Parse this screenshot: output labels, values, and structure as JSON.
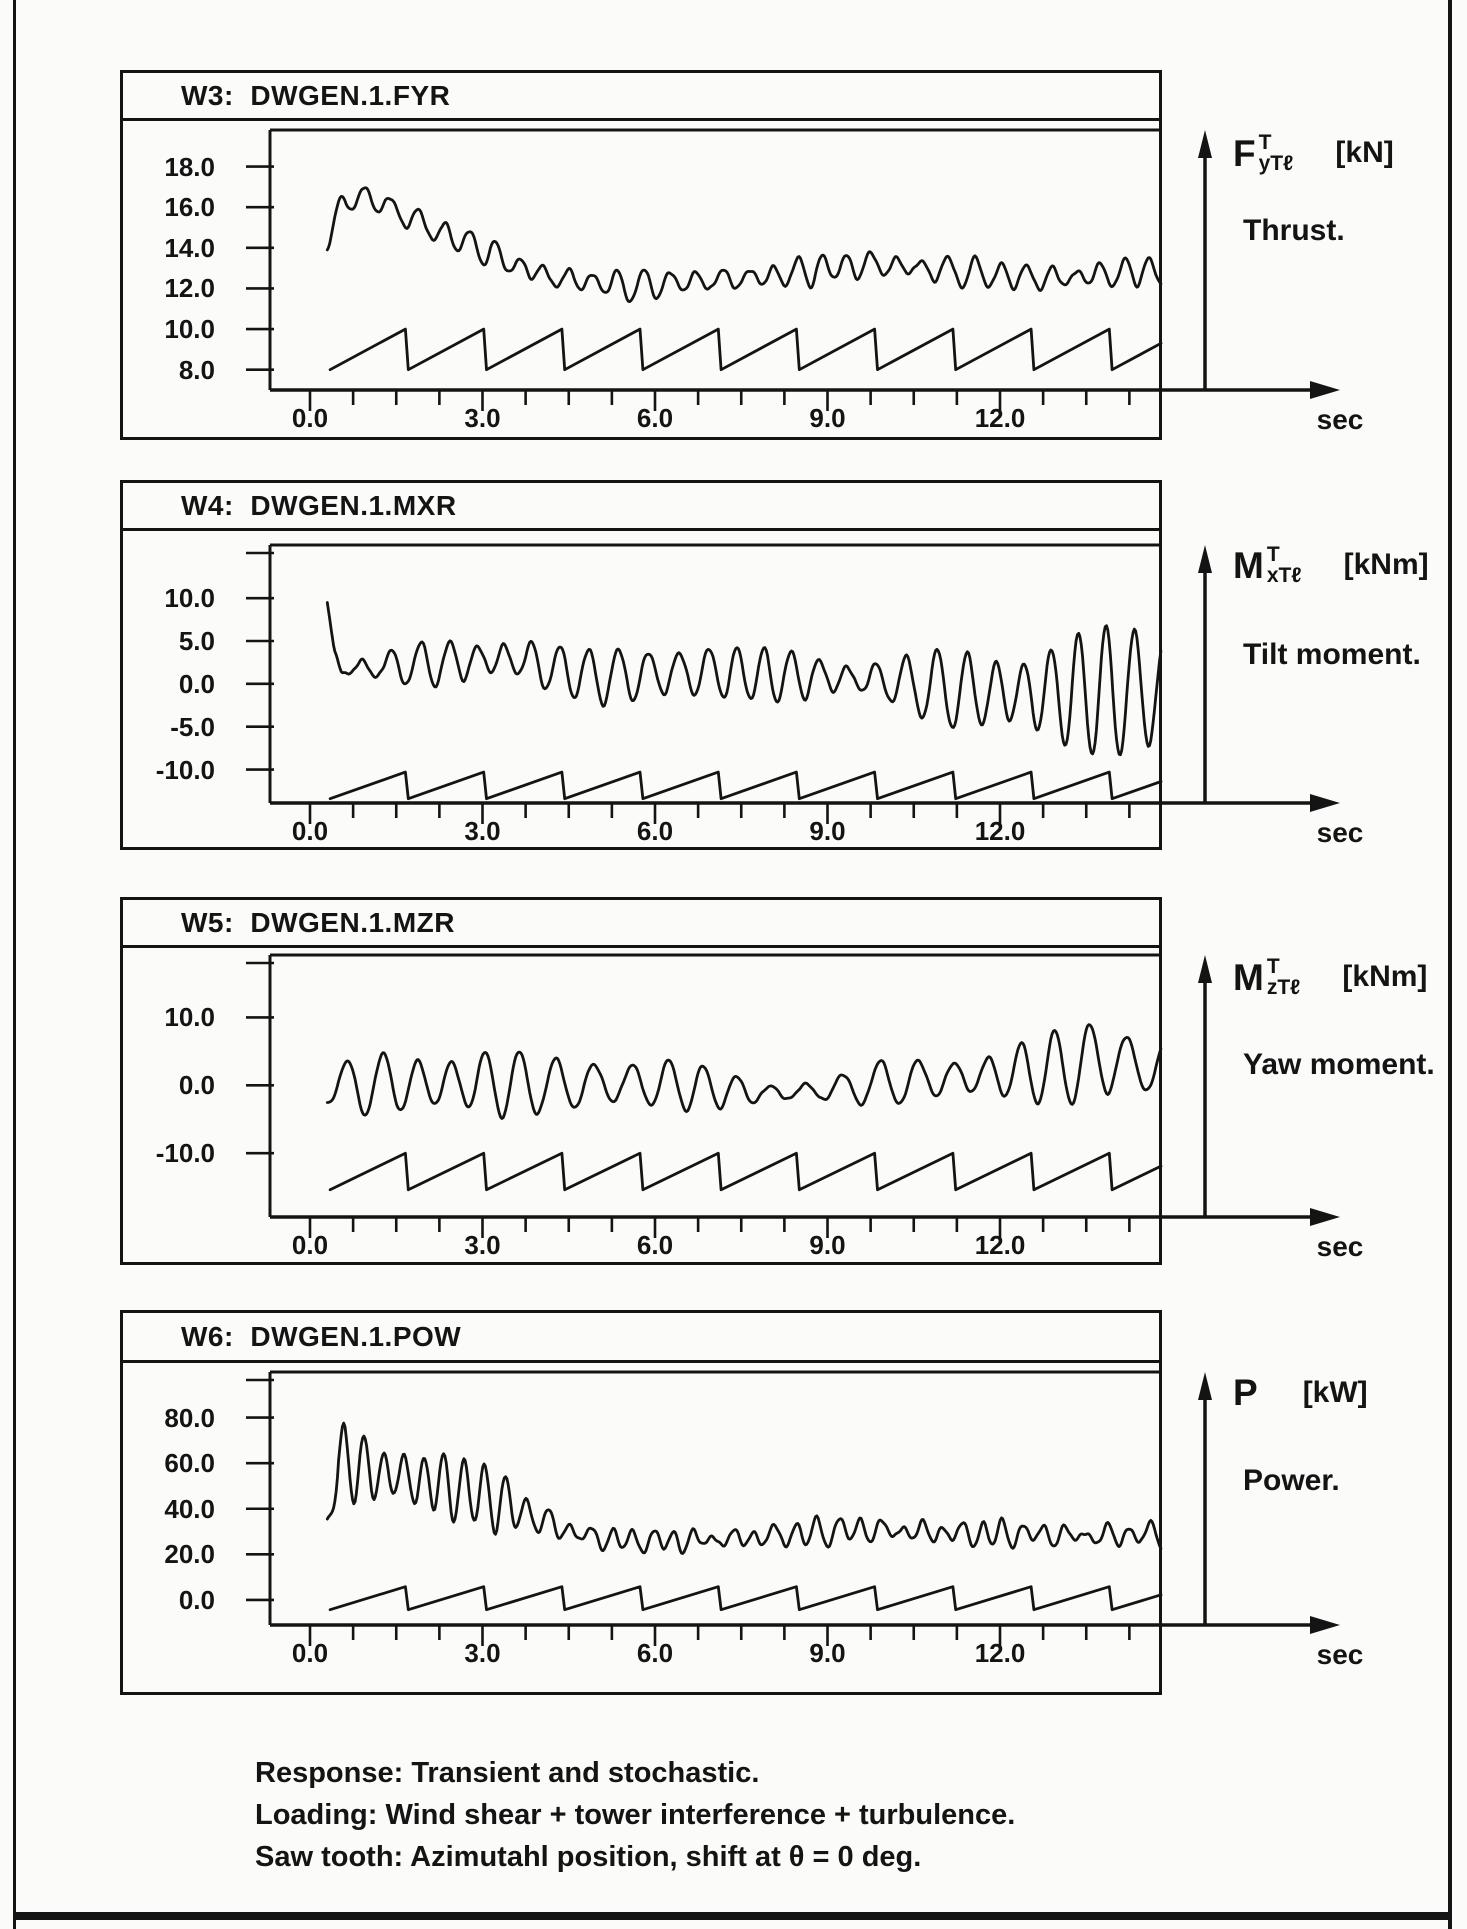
{
  "page": {
    "background": "#fbfbf9",
    "ink": "#141414",
    "caption_lines": [
      "Response: Transient and stochastic.",
      "Loading: Wind shear + tower interference + turbulence.",
      "Saw tooth: Azimutahl position, shift at θ = 0 deg."
    ]
  },
  "chart_data": [
    {
      "type": "line",
      "window_title": "W3:  DWGEN.1.FYR",
      "symbol": {
        "base": "F",
        "sup": "T",
        "sub": "yTℓ"
      },
      "unit": "[kN]",
      "quantity": "Thrust.",
      "xlabel": "sec",
      "xlim": [
        0,
        14.8
      ],
      "x_tick_values": [
        0,
        3,
        6,
        9,
        12
      ],
      "x_tick_labels": [
        "0.0",
        "3.0",
        "6.0",
        "9.0",
        "12.0"
      ],
      "x_minor_step": 0.75,
      "ylim": [
        7.0,
        19.8
      ],
      "y_ticks": [
        18,
        16,
        14,
        12,
        10,
        8
      ],
      "y_tick_labels": [
        "18.0",
        "16.0",
        "14.0",
        "12.0",
        "10.0",
        "8.0"
      ],
      "signal": {
        "t_start": 0.3,
        "period": 0.44,
        "phase": -2.0,
        "noise": 0.2,
        "seed": 1,
        "mean": [
          [
            0.3,
            14.6
          ],
          [
            0.6,
            16.2
          ],
          [
            0.9,
            16.6
          ],
          [
            1.3,
            16.1
          ],
          [
            1.8,
            15.4
          ],
          [
            2.3,
            14.7
          ],
          [
            2.8,
            14.2
          ],
          [
            3.3,
            13.5
          ],
          [
            3.8,
            12.9
          ],
          [
            4.3,
            12.5
          ],
          [
            5.0,
            12.3
          ],
          [
            5.6,
            12.1
          ],
          [
            6.3,
            12.3
          ],
          [
            7.0,
            12.4
          ],
          [
            8.0,
            12.6
          ],
          [
            9.0,
            13.0
          ],
          [
            9.8,
            13.2
          ],
          [
            10.6,
            13.0
          ],
          [
            11.4,
            12.8
          ],
          [
            12.2,
            12.6
          ],
          [
            13.0,
            12.5
          ],
          [
            13.8,
            12.7
          ],
          [
            14.8,
            12.9
          ]
        ],
        "amp": [
          [
            0.3,
            0.5
          ],
          [
            0.8,
            0.75
          ],
          [
            1.5,
            0.6
          ],
          [
            3.0,
            0.5
          ],
          [
            5.0,
            0.55
          ],
          [
            8.0,
            0.5
          ],
          [
            10.0,
            0.6
          ],
          [
            12.0,
            0.55
          ],
          [
            14.8,
            0.6
          ]
        ]
      },
      "sawtooth": {
        "t_start": 0.35,
        "period": 1.31,
        "min": 8.0,
        "max": 10.0
      }
    },
    {
      "type": "line",
      "window_title": "W4:  DWGEN.1.MXR",
      "symbol": {
        "base": "M",
        "sup": "T",
        "sub": "xTℓ"
      },
      "unit": "[kNm]",
      "quantity": "Tilt moment.",
      "xlabel": "sec",
      "xlim": [
        0,
        14.8
      ],
      "x_tick_values": [
        0,
        3,
        6,
        9,
        12
      ],
      "x_tick_labels": [
        "0.0",
        "3.0",
        "6.0",
        "9.0",
        "12.0"
      ],
      "x_minor_step": 0.75,
      "ylim": [
        -13.9,
        16.2
      ],
      "y_ticks": [
        10,
        5,
        0,
        -5,
        -10
      ],
      "y_tick_labels": [
        "10.0",
        "5.0",
        "0.0",
        "-5.0",
        "-10.0"
      ],
      "signal": {
        "t_start": 0.3,
        "period": 0.5,
        "phase": 0.5,
        "noise": 0.5,
        "seed": 2,
        "mean": [
          [
            0.3,
            9.5
          ],
          [
            0.42,
            3.5
          ],
          [
            0.55,
            1.6
          ],
          [
            0.8,
            1.8
          ],
          [
            1.2,
            2.0
          ],
          [
            2.0,
            2.3
          ],
          [
            3.0,
            2.8
          ],
          [
            3.6,
            3.0
          ],
          [
            4.2,
            1.8
          ],
          [
            5.0,
            0.8
          ],
          [
            6.0,
            1.2
          ],
          [
            7.0,
            1.4
          ],
          [
            8.0,
            1.0
          ],
          [
            9.0,
            0.8
          ],
          [
            10.0,
            0.4
          ],
          [
            10.8,
            -0.4
          ],
          [
            11.5,
            -0.9
          ],
          [
            12.5,
            -1.1
          ],
          [
            13.5,
            -1.0
          ],
          [
            14.8,
            -0.7
          ]
        ],
        "amp": [
          [
            0.3,
            0.2
          ],
          [
            0.6,
            1.0
          ],
          [
            1.5,
            1.7
          ],
          [
            2.5,
            2.1
          ],
          [
            3.5,
            2.6
          ],
          [
            4.5,
            2.2
          ],
          [
            5.5,
            3.2
          ],
          [
            6.5,
            3.0
          ],
          [
            7.5,
            2.6
          ],
          [
            8.5,
            2.4
          ],
          [
            9.5,
            2.2
          ],
          [
            10.5,
            2.6
          ],
          [
            11.3,
            3.8
          ],
          [
            12.0,
            4.8
          ],
          [
            13.0,
            5.6
          ],
          [
            14.0,
            6.2
          ],
          [
            14.8,
            6.6
          ]
        ]
      },
      "sawtooth": {
        "t_start": 0.35,
        "period": 1.31,
        "min": -13.4,
        "max": -10.3
      }
    },
    {
      "type": "line",
      "window_title": "W5:  DWGEN.1.MZR",
      "symbol": {
        "base": "M",
        "sup": "T",
        "sub": "zTℓ"
      },
      "unit": "[kNm]",
      "quantity": "Yaw moment.",
      "xlabel": "sec",
      "xlim": [
        0,
        14.8
      ],
      "x_tick_values": [
        0,
        3,
        6,
        9,
        12
      ],
      "x_tick_labels": [
        "0.0",
        "3.0",
        "6.0",
        "9.0",
        "12.0"
      ],
      "x_minor_step": 0.75,
      "ylim": [
        -19.4,
        19.2
      ],
      "y_ticks": [
        10,
        0,
        -10
      ],
      "y_tick_labels": [
        "10.0",
        "0.0",
        "-10.0"
      ],
      "signal": {
        "t_start": 0.3,
        "period": 0.62,
        "phase": -1.47,
        "noise": 0.35,
        "seed": 3,
        "mean": [
          [
            0.3,
            -1.0
          ],
          [
            0.6,
            0.0
          ],
          [
            1.0,
            0.3
          ],
          [
            2.0,
            0.2
          ],
          [
            3.0,
            0.5
          ],
          [
            4.0,
            0.0
          ],
          [
            5.0,
            0.2
          ],
          [
            6.0,
            0.3
          ],
          [
            7.0,
            -0.5
          ],
          [
            8.0,
            -1.2
          ],
          [
            9.0,
            -0.7
          ],
          [
            10.0,
            0.4
          ],
          [
            11.0,
            1.0
          ],
          [
            12.0,
            1.6
          ],
          [
            13.0,
            2.6
          ],
          [
            13.8,
            3.8
          ],
          [
            14.4,
            3.0
          ],
          [
            14.8,
            2.5
          ]
        ],
        "amp": [
          [
            0.3,
            1.5
          ],
          [
            0.8,
            3.6
          ],
          [
            1.5,
            3.9
          ],
          [
            2.5,
            4.3
          ],
          [
            3.2,
            4.6
          ],
          [
            4.0,
            3.0
          ],
          [
            4.8,
            3.3
          ],
          [
            6.0,
            3.5
          ],
          [
            7.0,
            2.2
          ],
          [
            8.0,
            1.4
          ],
          [
            9.0,
            1.7
          ],
          [
            10.0,
            2.7
          ],
          [
            11.0,
            3.1
          ],
          [
            12.0,
            3.5
          ],
          [
            13.0,
            4.4
          ],
          [
            13.8,
            6.0
          ],
          [
            14.8,
            4.8
          ]
        ]
      },
      "sawtooth": {
        "t_start": 0.35,
        "period": 1.31,
        "min": -15.4,
        "max": -10.0
      }
    },
    {
      "type": "line",
      "window_title": "W6:  DWGEN.1.POW",
      "symbol": {
        "base": "P",
        "sup": "",
        "sub": ""
      },
      "unit": "[kW]",
      "quantity": "Power.",
      "xlabel": "sec",
      "xlim": [
        0,
        14.8
      ],
      "x_tick_values": [
        0,
        3,
        6,
        9,
        12
      ],
      "x_tick_labels": [
        "0.0",
        "3.0",
        "6.0",
        "9.0",
        "12.0"
      ],
      "x_minor_step": 0.75,
      "ylim": [
        -11,
        100
      ],
      "y_ticks": [
        80,
        60,
        40,
        20,
        0
      ],
      "y_tick_labels": [
        "80.0",
        "60.0",
        "40.0",
        "20.0",
        "0.0"
      ],
      "signal": {
        "t_start": 0.3,
        "period": 0.36,
        "phase": -2.79,
        "noise": 2.4,
        "seed": 4,
        "mean": [
          [
            0.3,
            34
          ],
          [
            0.5,
            62
          ],
          [
            0.8,
            58
          ],
          [
            1.2,
            56
          ],
          [
            1.8,
            53
          ],
          [
            2.4,
            50
          ],
          [
            3.0,
            46
          ],
          [
            3.6,
            40
          ],
          [
            4.2,
            33
          ],
          [
            4.8,
            28
          ],
          [
            5.5,
            26
          ],
          [
            6.5,
            26
          ],
          [
            7.5,
            27
          ],
          [
            8.5,
            29
          ],
          [
            9.5,
            31
          ],
          [
            10.5,
            30
          ],
          [
            11.5,
            29
          ],
          [
            12.5,
            29
          ],
          [
            13.5,
            28
          ],
          [
            14.8,
            29
          ]
        ],
        "amp": [
          [
            0.3,
            4
          ],
          [
            0.6,
            18
          ],
          [
            1.0,
            15
          ],
          [
            1.6,
            13
          ],
          [
            2.2,
            12
          ],
          [
            3.0,
            11
          ],
          [
            3.6,
            9
          ],
          [
            4.2,
            6
          ],
          [
            5.0,
            4
          ],
          [
            6.0,
            3.5
          ],
          [
            7.0,
            3.5
          ],
          [
            8.0,
            4.2
          ],
          [
            9.0,
            4.6
          ],
          [
            10.0,
            4.4
          ],
          [
            11.0,
            4.0
          ],
          [
            12.5,
            4.2
          ],
          [
            14.8,
            4.0
          ]
        ]
      },
      "sawtooth": {
        "t_start": 0.35,
        "period": 1.31,
        "min": -4.3,
        "max": 5.8
      }
    }
  ]
}
